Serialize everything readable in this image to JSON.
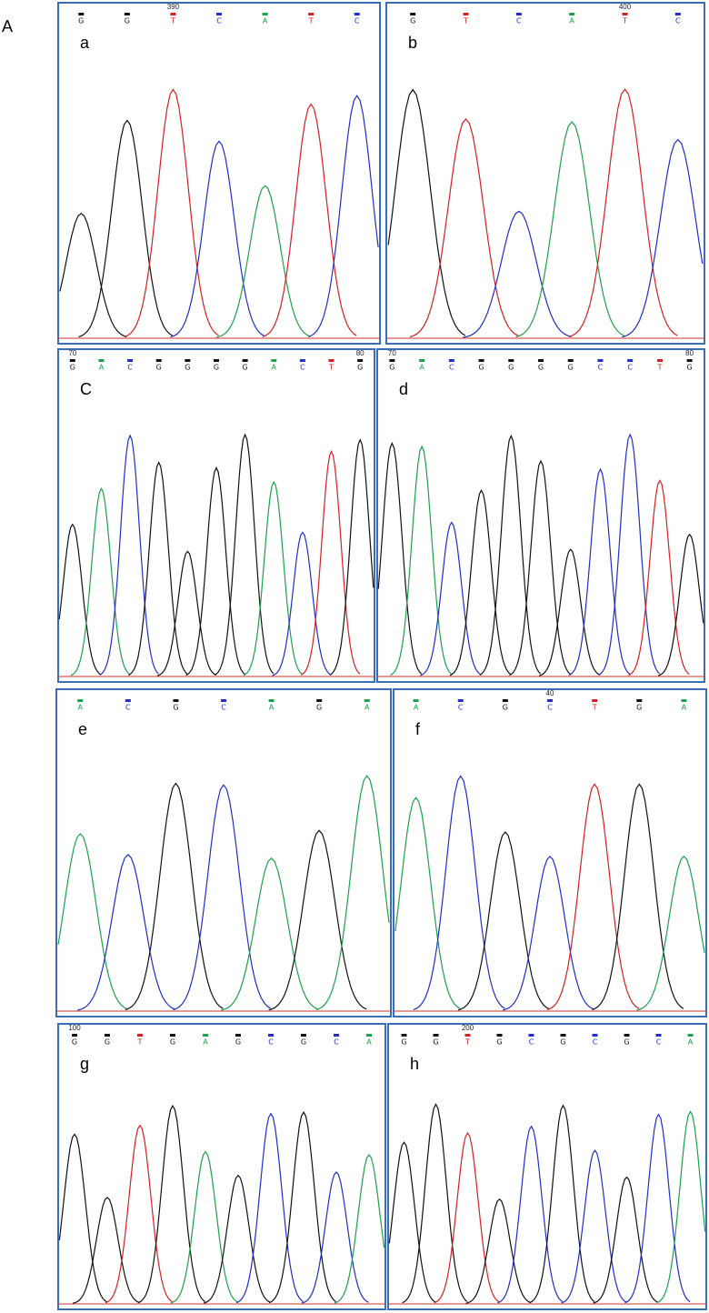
{
  "figure_label": "A",
  "panels": [
    {
      "letter": "a",
      "positions": [
        390
      ],
      "bases": [
        "G",
        "G",
        "T",
        "C",
        "A",
        "T",
        "C"
      ]
    },
    {
      "letter": "b",
      "positions": [
        400
      ],
      "bases": [
        "G",
        "T",
        "C",
        "A",
        "T",
        "C"
      ]
    },
    {
      "letter": "C",
      "positions": [
        70,
        80
      ],
      "bases": [
        "G",
        "A",
        "C",
        "G",
        "G",
        "G",
        "G",
        "A",
        "C",
        "T",
        "G"
      ]
    },
    {
      "letter": "d",
      "positions": [
        70,
        80
      ],
      "bases": [
        "G",
        "A",
        "C",
        "G",
        "G",
        "G",
        "G",
        "C",
        "C",
        "T",
        "G"
      ]
    },
    {
      "letter": "e",
      "positions": [],
      "bases": [
        "A",
        "C",
        "G",
        "C",
        "A",
        "G",
        "A"
      ]
    },
    {
      "letter": "f",
      "positions": [
        40
      ],
      "bases": [
        "A",
        "C",
        "G",
        "C",
        "T",
        "G",
        "A"
      ]
    },
    {
      "letter": "g",
      "positions": [
        100
      ],
      "bases": [
        "G",
        "G",
        "T",
        "G",
        "A",
        "G",
        "C",
        "G",
        "C",
        "A"
      ]
    },
    {
      "letter": "h",
      "positions": [
        200
      ],
      "bases": [
        "G",
        "G",
        "T",
        "G",
        "C",
        "G",
        "C",
        "G",
        "C",
        "A"
      ]
    }
  ]
}
